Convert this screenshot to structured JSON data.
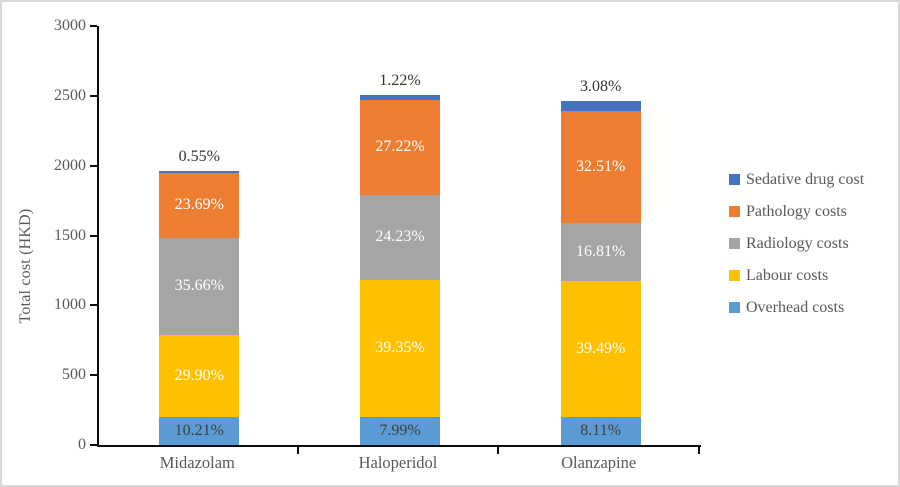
{
  "chart_data": {
    "type": "bar",
    "subtype": "stacked-column",
    "title": "",
    "xlabel": "",
    "ylabel": "Total cost (HKD)",
    "ylim": [
      0,
      3000
    ],
    "yticks": [
      0,
      500,
      1000,
      1500,
      2000,
      2500,
      3000
    ],
    "grid": false,
    "categories": [
      "Midazolam",
      "Haloperidol",
      "Olanzapine"
    ],
    "totals": [
      1959.3,
      2503.6,
      2466.0
    ],
    "series": [
      {
        "name": "Overhead costs",
        "color": "#5B9BD5",
        "values": [
          200.0,
          200.0,
          200.0
        ],
        "percent_labels": [
          "10.21%",
          "7.99%",
          "8.11%"
        ],
        "label_color": "#404040",
        "label_inside": true
      },
      {
        "name": "Labour costs",
        "color": "#FFC000",
        "values": [
          585.8,
          985.1,
          973.8
        ],
        "percent_labels": [
          "29.90%",
          "39.35%",
          "39.49%"
        ],
        "label_color": "#FFFFFF",
        "label_inside": true
      },
      {
        "name": "Radiology costs",
        "color": "#A5A5A5",
        "values": [
          698.6,
          606.6,
          414.5
        ],
        "percent_labels": [
          "35.66%",
          "24.23%",
          "16.81%"
        ],
        "label_color": "#FFFFFF",
        "label_inside": true
      },
      {
        "name": "Pathology costs",
        "color": "#ED7D31",
        "values": [
          464.1,
          681.4,
          801.7
        ],
        "percent_labels": [
          "23.69%",
          "27.22%",
          "32.51%"
        ],
        "label_color": "#FFFFFF",
        "label_inside": true
      },
      {
        "name": "Sedative drug cost",
        "color": "#4472C4",
        "values": [
          10.8,
          30.5,
          76.0
        ],
        "percent_labels": [
          "0.55%",
          "1.22%",
          "3.08%"
        ],
        "label_color": "#333333",
        "label_inside": false
      }
    ],
    "legend": {
      "position": "right",
      "items_top_to_bottom": [
        "Sedative drug cost",
        "Pathology costs",
        "Radiology costs",
        "Labour costs",
        "Overhead costs"
      ]
    },
    "axis_colors": {
      "axis_line": "#0d0d0d",
      "tick_text": "#595959",
      "outside_label_text": "#333333"
    }
  }
}
